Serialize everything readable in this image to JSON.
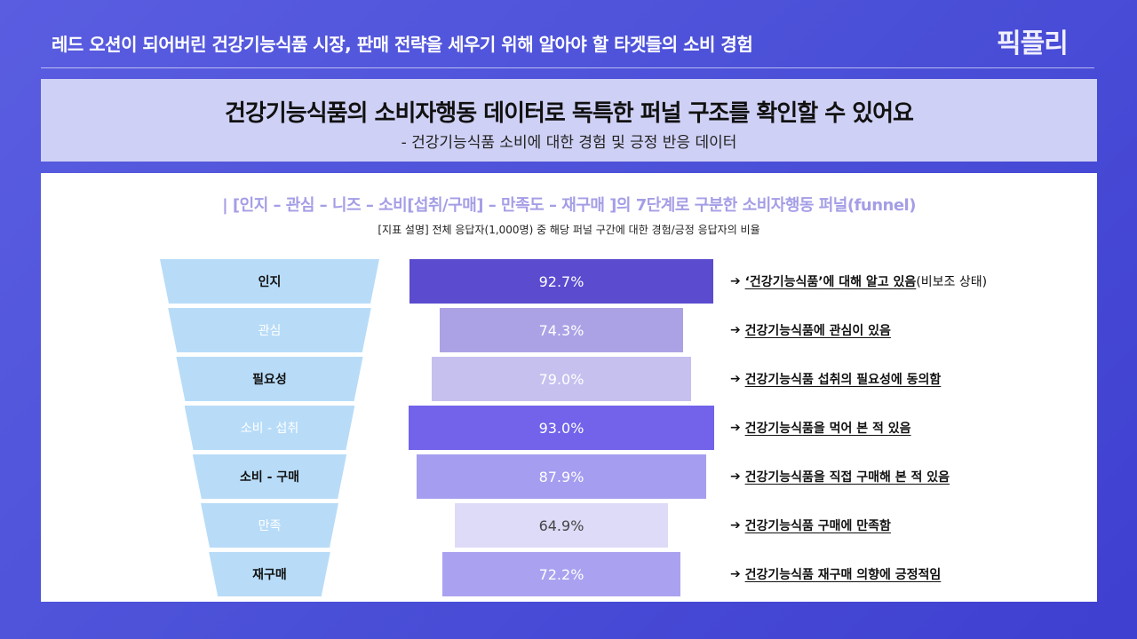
{
  "header": {
    "title": "레드 오션이 되어버린 건강기능식품 시장, 판매 전략을 세우기 위해 알아야 할 타겟들의 소비 경험",
    "logo": "픽플리"
  },
  "headline": {
    "title": "건강기능식품의 소비자행동 데이터로 독특한 퍼널 구조를 확인할 수 있어요",
    "subtitle": "- 건강기능식품 소비에 대한 경험 및 긍정 반응 데이터"
  },
  "panel": {
    "subtitle": "| [인지 – 관심 – 니즈 – 소비[섭취/구매] – 만족도 – 재구매 ]의 7단계로 구분한 소비자행동 퍼널(funnel)",
    "note": "[지표 설명] 전체 응답자(1,000명) 중 해당 퍼널 구간에 대한 경험/긍정 응답자의 비율"
  },
  "funnel": [
    {
      "stage": "인지",
      "value": "92.7%",
      "pct": 92.7,
      "color": "#5b4bcf",
      "text_color": "#ffffff",
      "stage_style": "dark",
      "desc": "‘건강기능식품’에 대해 알고 있음",
      "desc_tail": "(비보조 상태)"
    },
    {
      "stage": "관심",
      "value": "74.3%",
      "pct": 74.3,
      "color": "#aba2e6",
      "text_color": "#ffffff",
      "stage_style": "light",
      "desc": "건강기능식품에 관심이 있음",
      "desc_tail": ""
    },
    {
      "stage": "필요성",
      "value": "79.0%",
      "pct": 79.0,
      "color": "#c6c0ef",
      "text_color": "#ffffff",
      "stage_style": "dark",
      "desc": "건강기능식품 섭취의 필요성에 동의함",
      "desc_tail": ""
    },
    {
      "stage": "소비 - 섭취",
      "value": "93.0%",
      "pct": 93.0,
      "color": "#7263ea",
      "text_color": "#ffffff",
      "stage_style": "light",
      "desc": "건강기능식품을 먹어 본 적 있음",
      "desc_tail": ""
    },
    {
      "stage": "소비 - 구매",
      "value": "87.9%",
      "pct": 87.9,
      "color": "#a59df0",
      "text_color": "#ffffff",
      "stage_style": "dark",
      "desc": "건강기능식품을 직접 구매해 본 적 있음",
      "desc_tail": ""
    },
    {
      "stage": "만족",
      "value": "64.9%",
      "pct": 64.9,
      "color": "#dedbf8",
      "text_color": "#444444",
      "stage_style": "light",
      "desc": "건강기능식품 구매에 만족함",
      "desc_tail": ""
    },
    {
      "stage": "재구매",
      "value": "72.2%",
      "pct": 72.2,
      "color": "#aaa2f0",
      "text_color": "#ffffff",
      "stage_style": "dark",
      "desc": "건강기능식품 재구매 의향에 긍정적임",
      "desc_tail": ""
    }
  ],
  "arrow": "➔"
}
